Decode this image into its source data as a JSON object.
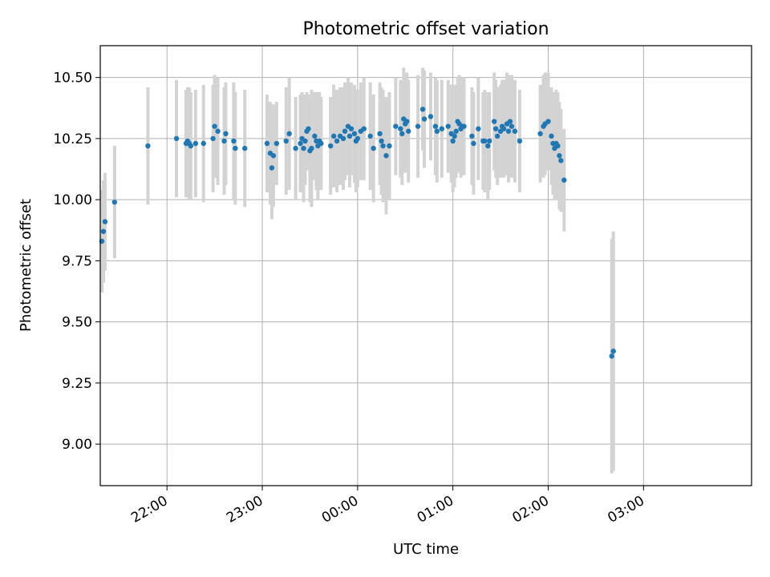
{
  "chart_data": {
    "type": "scatter",
    "title": "Photometric offset variation",
    "xlabel": "UTC time",
    "ylabel": "Photometric offset",
    "x_ticks": [
      "22:00",
      "23:00",
      "00:00",
      "01:00",
      "02:00",
      "03:00"
    ],
    "y_ticks": [
      "9.00",
      "9.25",
      "9.50",
      "9.75",
      "10.00",
      "10.25",
      "10.50"
    ],
    "y_tick_values": [
      9.0,
      9.25,
      9.5,
      9.75,
      10.0,
      10.25,
      10.5
    ],
    "x_tick_times": [
      "22:00",
      "23:00",
      "24:00",
      "25:00",
      "26:00",
      "27:00"
    ],
    "xlim": [
      "21:18",
      "28:08"
    ],
    "ylim": [
      8.83,
      10.63
    ],
    "grid": true,
    "colors": {
      "point": "#1f77b4",
      "errorbar": "#d3d3d3",
      "grid": "#b0b0b0"
    },
    "series": [
      {
        "points": [
          [
            "21:19",
            9.83,
            0.21
          ],
          [
            "21:20",
            9.87,
            0.21
          ],
          [
            "21:21",
            9.91,
            0.2
          ],
          [
            "21:27",
            9.99,
            0.23
          ],
          [
            "21:48",
            10.22,
            0.24
          ],
          [
            "22:06",
            10.25,
            0.24
          ],
          [
            "22:12",
            10.23,
            0.22
          ],
          [
            "22:13",
            10.24,
            0.22
          ],
          [
            "22:14",
            10.23,
            0.23
          ],
          [
            "22:15",
            10.22,
            0.22
          ],
          [
            "22:18",
            10.23,
            0.22
          ],
          [
            "22:23",
            10.23,
            0.24
          ],
          [
            "22:29",
            10.25,
            0.22
          ],
          [
            "22:30",
            10.3,
            0.21
          ],
          [
            "22:32",
            10.28,
            0.22
          ],
          [
            "22:36",
            10.24,
            0.22
          ],
          [
            "22:37",
            10.27,
            0.21
          ],
          [
            "22:42",
            10.24,
            0.24
          ],
          [
            "22:43",
            10.21,
            0.23
          ],
          [
            "22:49",
            10.21,
            0.24
          ],
          [
            "23:03",
            10.23,
            0.2
          ],
          [
            "23:05",
            10.19,
            0.21
          ],
          [
            "23:06",
            10.13,
            0.21
          ],
          [
            "23:07",
            10.18,
            0.21
          ],
          [
            "23:09",
            10.23,
            0.17
          ],
          [
            "23:15",
            10.24,
            0.22
          ],
          [
            "23:17",
            10.27,
            0.23
          ],
          [
            "23:21",
            10.21,
            0.21
          ],
          [
            "23:24",
            10.23,
            0.2
          ],
          [
            "23:25",
            10.25,
            0.19
          ],
          [
            "23:26",
            10.21,
            0.22
          ],
          [
            "23:27",
            10.24,
            0.18
          ],
          [
            "23:28",
            10.28,
            0.16
          ],
          [
            "23:29",
            10.29,
            0.14
          ],
          [
            "23:30",
            10.2,
            0.21
          ],
          [
            "23:31",
            10.21,
            0.24
          ],
          [
            "23:33",
            10.26,
            0.18
          ],
          [
            "23:34",
            10.24,
            0.2
          ],
          [
            "23:35",
            10.22,
            0.22
          ],
          [
            "23:36",
            10.24,
            0.2
          ],
          [
            "23:37",
            10.23,
            0.19
          ],
          [
            "23:43",
            10.22,
            0.2
          ],
          [
            "23:45",
            10.26,
            0.21
          ],
          [
            "23:47",
            10.24,
            0.21
          ],
          [
            "23:49",
            10.26,
            0.2
          ],
          [
            "23:51",
            10.25,
            0.21
          ],
          [
            "23:52",
            10.28,
            0.2
          ],
          [
            "23:54",
            10.3,
            0.2
          ],
          [
            "23:55",
            10.26,
            0.21
          ],
          [
            "23:56",
            10.29,
            0.19
          ],
          [
            "23:58",
            10.27,
            0.2
          ],
          [
            "23:59",
            10.24,
            0.21
          ],
          [
            "24:00",
            10.25,
            0.2
          ],
          [
            "24:02",
            10.28,
            0.2
          ],
          [
            "24:04",
            10.29,
            0.21
          ],
          [
            "24:08",
            10.26,
            0.22
          ],
          [
            "24:10",
            10.21,
            0.22
          ],
          [
            "24:14",
            10.27,
            0.21
          ],
          [
            "24:15",
            10.24,
            0.22
          ],
          [
            "24:16",
            10.22,
            0.23
          ],
          [
            "24:18",
            10.18,
            0.24
          ],
          [
            "24:20",
            10.22,
            0.22
          ],
          [
            "24:24",
            10.3,
            0.2
          ],
          [
            "24:27",
            10.29,
            0.2
          ],
          [
            "24:28",
            10.27,
            0.21
          ],
          [
            "24:29",
            10.33,
            0.21
          ],
          [
            "24:30",
            10.31,
            0.2
          ],
          [
            "24:31",
            10.32,
            0.2
          ],
          [
            "24:32",
            10.28,
            0.21
          ],
          [
            "24:38",
            10.3,
            0.21
          ],
          [
            "24:41",
            10.37,
            0.17
          ],
          [
            "24:42",
            10.33,
            0.2
          ],
          [
            "24:46",
            10.34,
            0.18
          ],
          [
            "24:49",
            10.3,
            0.2
          ],
          [
            "24:50",
            10.28,
            0.21
          ],
          [
            "24:53",
            10.29,
            0.2
          ],
          [
            "24:57",
            10.3,
            0.19
          ],
          [
            "24:59",
            10.27,
            0.2
          ],
          [
            "25:00",
            10.24,
            0.21
          ],
          [
            "25:01",
            10.26,
            0.21
          ],
          [
            "25:02",
            10.28,
            0.19
          ],
          [
            "25:03",
            10.32,
            0.18
          ],
          [
            "25:04",
            10.31,
            0.2
          ],
          [
            "25:05",
            10.29,
            0.2
          ],
          [
            "25:06",
            10.3,
            0.2
          ],
          [
            "25:07",
            10.3,
            0.2
          ],
          [
            "25:12",
            10.26,
            0.2
          ],
          [
            "25:13",
            10.23,
            0.21
          ],
          [
            "25:16",
            10.29,
            0.21
          ],
          [
            "25:19",
            10.24,
            0.2
          ],
          [
            "25:20",
            10.24,
            0.21
          ],
          [
            "25:22",
            10.22,
            0.22
          ],
          [
            "25:23",
            10.24,
            0.2
          ],
          [
            "25:26",
            10.32,
            0.2
          ],
          [
            "25:27",
            10.29,
            0.2
          ],
          [
            "25:28",
            10.26,
            0.2
          ],
          [
            "25:30",
            10.28,
            0.19
          ],
          [
            "25:31",
            10.3,
            0.19
          ],
          [
            "25:32",
            10.29,
            0.2
          ],
          [
            "25:34",
            10.31,
            0.21
          ],
          [
            "25:35",
            10.28,
            0.21
          ],
          [
            "25:36",
            10.32,
            0.19
          ],
          [
            "25:37",
            10.3,
            0.21
          ],
          [
            "25:39",
            10.28,
            0.21
          ],
          [
            "25:42",
            10.24,
            0.21
          ],
          [
            "25:55",
            10.27,
            0.2
          ],
          [
            "25:57",
            10.3,
            0.21
          ],
          [
            "25:58",
            10.31,
            0.21
          ],
          [
            "26:00",
            10.32,
            0.2
          ],
          [
            "26:02",
            10.26,
            0.2
          ],
          [
            "26:03",
            10.23,
            0.21
          ],
          [
            "26:04",
            10.21,
            0.21
          ],
          [
            "26:05",
            10.23,
            0.22
          ],
          [
            "26:06",
            10.22,
            0.22
          ],
          [
            "26:07",
            10.18,
            0.22
          ],
          [
            "26:08",
            10.16,
            0.21
          ],
          [
            "26:10",
            10.08,
            0.21
          ],
          [
            "26:40",
            9.36,
            0.48
          ],
          [
            "26:41",
            9.38,
            0.49
          ]
        ]
      }
    ]
  }
}
